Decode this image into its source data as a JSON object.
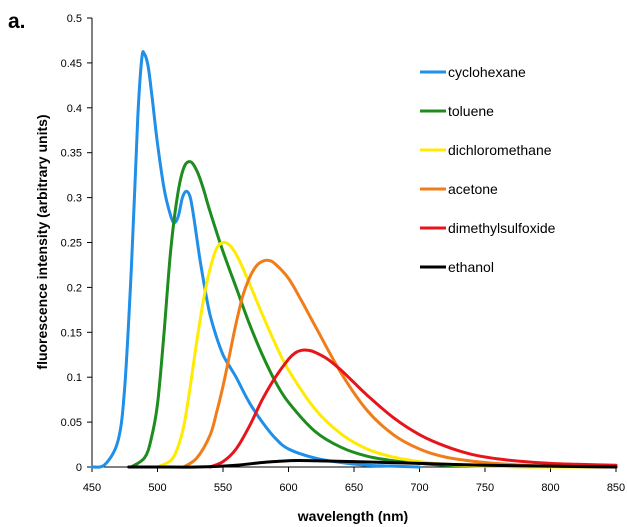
{
  "panel_label": "a.",
  "chart_data": {
    "type": "line",
    "title": "",
    "xlabel": "wavelength (nm)",
    "ylabel": "fluorescence intensity (arbitrary units)",
    "xlim": [
      450,
      850
    ],
    "ylim": [
      0,
      0.5
    ],
    "xticks": [
      450,
      500,
      550,
      600,
      650,
      700,
      750,
      800,
      850
    ],
    "yticks": [
      0,
      0.05,
      0.1,
      0.15,
      0.2,
      0.25,
      0.3,
      0.35,
      0.4,
      0.45,
      0.5
    ],
    "xtick_labels": [
      "450",
      "500",
      "550",
      "600",
      "650",
      "700",
      "750",
      "800",
      "850"
    ],
    "ytick_labels": [
      "0",
      "0.05",
      "0.1",
      "0.15",
      "0.2",
      "0.25",
      "0.3",
      "0.35",
      "0.4",
      "0.45",
      "0.5"
    ],
    "grid": false,
    "legend": "top-right",
    "series": [
      {
        "name": "cyclohexane",
        "color": "#1f8fe8",
        "x": [
          450,
          460,
          470,
          475,
          480,
          485,
          488,
          490,
          493,
          496,
          500,
          505,
          510,
          513,
          516,
          519,
          522,
          525,
          528,
          532,
          536,
          540,
          545,
          550,
          555,
          560,
          570,
          580,
          590,
          600,
          620,
          640,
          660,
          680,
          700
        ],
        "y": [
          0.0,
          0.003,
          0.03,
          0.09,
          0.22,
          0.39,
          0.455,
          0.46,
          0.445,
          0.41,
          0.36,
          0.31,
          0.28,
          0.272,
          0.28,
          0.3,
          0.307,
          0.3,
          0.275,
          0.235,
          0.2,
          0.17,
          0.145,
          0.125,
          0.112,
          0.1,
          0.072,
          0.05,
          0.032,
          0.02,
          0.01,
          0.005,
          0.002,
          0.001,
          0.0
        ]
      },
      {
        "name": "toluene",
        "color": "#1e8c1e",
        "x": [
          480,
          490,
          495,
          500,
          505,
          510,
          515,
          520,
          525,
          530,
          535,
          540,
          550,
          560,
          570,
          580,
          590,
          600,
          620,
          640,
          660,
          680,
          700,
          720,
          750,
          800,
          850
        ],
        "y": [
          0.0,
          0.01,
          0.03,
          0.07,
          0.15,
          0.24,
          0.3,
          0.333,
          0.34,
          0.33,
          0.31,
          0.285,
          0.24,
          0.2,
          0.16,
          0.125,
          0.095,
          0.072,
          0.04,
          0.022,
          0.012,
          0.007,
          0.004,
          0.002,
          0.001,
          0.0,
          0.0
        ]
      },
      {
        "name": "dichloromethane",
        "color": "#ffeb00",
        "x": [
          500,
          510,
          515,
          520,
          525,
          530,
          535,
          540,
          545,
          550,
          555,
          560,
          565,
          570,
          580,
          590,
          600,
          620,
          640,
          660,
          680,
          700,
          720,
          750,
          800,
          850
        ],
        "y": [
          0.0,
          0.007,
          0.02,
          0.045,
          0.09,
          0.14,
          0.185,
          0.22,
          0.243,
          0.25,
          0.247,
          0.237,
          0.222,
          0.205,
          0.17,
          0.137,
          0.108,
          0.065,
          0.037,
          0.02,
          0.011,
          0.006,
          0.003,
          0.001,
          0.0,
          0.0
        ]
      },
      {
        "name": "acetone",
        "color": "#f07d1a",
        "x": [
          520,
          530,
          540,
          545,
          550,
          555,
          560,
          565,
          570,
          575,
          580,
          585,
          590,
          600,
          610,
          620,
          640,
          660,
          680,
          700,
          720,
          750,
          780,
          800,
          850
        ],
        "y": [
          0.0,
          0.01,
          0.035,
          0.06,
          0.09,
          0.125,
          0.16,
          0.19,
          0.21,
          0.223,
          0.229,
          0.23,
          0.226,
          0.21,
          0.185,
          0.158,
          0.105,
          0.063,
          0.036,
          0.02,
          0.011,
          0.005,
          0.002,
          0.001,
          0.0
        ]
      },
      {
        "name": "dimethylsulfoxide",
        "color": "#e8141a",
        "x": [
          540,
          550,
          560,
          570,
          580,
          590,
          600,
          605,
          610,
          615,
          620,
          630,
          640,
          650,
          660,
          680,
          700,
          720,
          740,
          760,
          780,
          800,
          820,
          850
        ],
        "y": [
          0.0,
          0.006,
          0.02,
          0.045,
          0.075,
          0.1,
          0.12,
          0.127,
          0.13,
          0.13,
          0.128,
          0.12,
          0.108,
          0.094,
          0.08,
          0.055,
          0.036,
          0.023,
          0.014,
          0.009,
          0.006,
          0.004,
          0.003,
          0.002
        ]
      },
      {
        "name": "ethanol",
        "color": "#000000",
        "x": [
          478,
          500,
          530,
          560,
          580,
          600,
          620,
          650,
          700,
          750,
          800,
          850
        ],
        "y": [
          0.0,
          0.0,
          0.0,
          0.002,
          0.005,
          0.007,
          0.007,
          0.006,
          0.004,
          0.002,
          0.001,
          0.0
        ]
      }
    ]
  }
}
